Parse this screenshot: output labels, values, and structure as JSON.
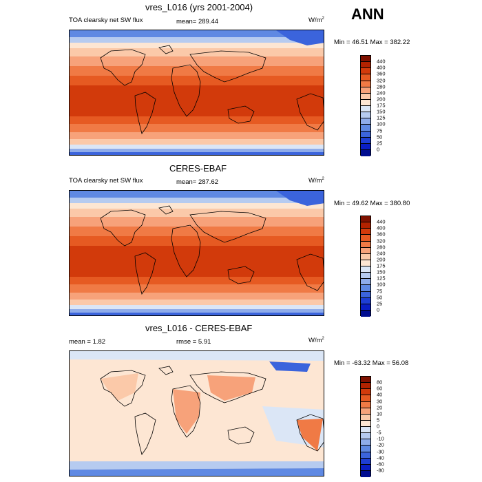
{
  "season": "ANN",
  "panels": [
    {
      "title": "vres_L016 (yrs 2001-2004)",
      "left_label": "TOA clearsky net SW flux",
      "center_label": "mean= 289.44",
      "units": "W/m",
      "units_sup": "2",
      "minmax": "Min =  46.51 Max = 382.22",
      "colorbar": {
        "labels": [
          "440",
          "400",
          "360",
          "320",
          "280",
          "240",
          "200",
          "175",
          "150",
          "125",
          "100",
          "75",
          "50",
          "25",
          "0"
        ],
        "colors": [
          "#7f1100",
          "#b22200",
          "#d23a0b",
          "#e65a22",
          "#f07a45",
          "#f7a27a",
          "#fbc9a9",
          "#fde6d3",
          "#dbe6f6",
          "#b6cbf0",
          "#8facea",
          "#5f89e3",
          "#3b64dc",
          "#1e3ed4",
          "#0a1ec4",
          "#000d90"
        ]
      },
      "field_type": "sw"
    },
    {
      "title": "CERES-EBAF",
      "left_label": "TOA clearsky net SW flux",
      "center_label": "mean= 287.62",
      "units": "W/m",
      "units_sup": "2",
      "minmax": "Min =  49.62 Max = 380.80",
      "colorbar": {
        "labels": [
          "440",
          "400",
          "360",
          "320",
          "280",
          "240",
          "200",
          "175",
          "150",
          "125",
          "100",
          "75",
          "50",
          "25",
          "0"
        ],
        "colors": [
          "#7f1100",
          "#b22200",
          "#d23a0b",
          "#e65a22",
          "#f07a45",
          "#f7a27a",
          "#fbc9a9",
          "#fde6d3",
          "#dbe6f6",
          "#b6cbf0",
          "#8facea",
          "#5f89e3",
          "#3b64dc",
          "#1e3ed4",
          "#0a1ec4",
          "#000d90"
        ]
      },
      "field_type": "sw"
    },
    {
      "title": "vres_L016 - CERES-EBAF",
      "left_label": "mean =   1.82",
      "center_label": "rmse =   5.91",
      "units": "W/m",
      "units_sup": "2",
      "minmax": "Min = -63.32 Max =  56.08",
      "colorbar": {
        "labels": [
          "80",
          "60",
          "40",
          "30",
          "20",
          "10",
          "5",
          "0",
          "-5",
          "-10",
          "-20",
          "-30",
          "-40",
          "-60",
          "-80"
        ],
        "colors": [
          "#7f1100",
          "#b22200",
          "#d23a0b",
          "#e65a22",
          "#f07a45",
          "#f7a27a",
          "#fbc9a9",
          "#fde6d3",
          "#dbe6f6",
          "#b6cbf0",
          "#8facea",
          "#5f89e3",
          "#3b64dc",
          "#1e3ed4",
          "#0a1ec4",
          "#000d90"
        ]
      },
      "field_type": "diff"
    }
  ]
}
